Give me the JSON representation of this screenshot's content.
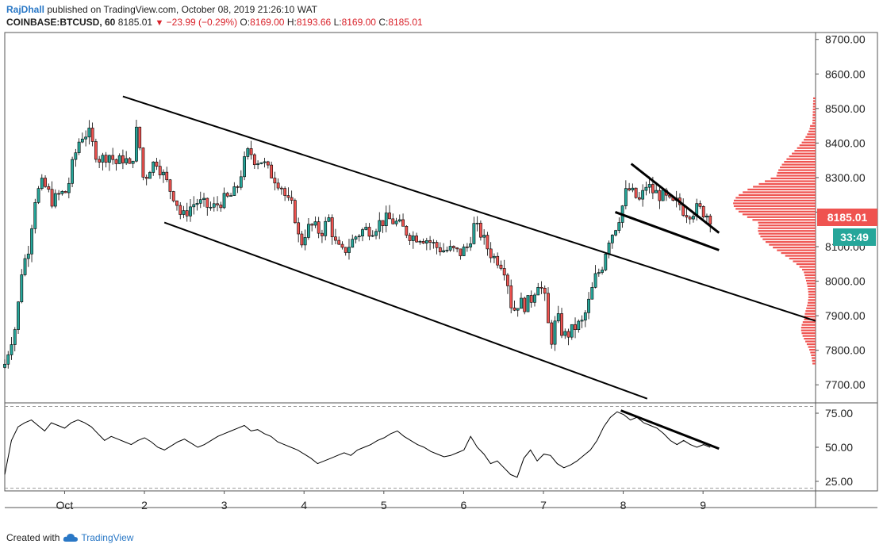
{
  "header": {
    "author": "RajDhall",
    "published": "published on TradingView.com, October 08, 2019 21:26:10 WAT",
    "symbol": "COINBASE:BTCUSD, 60",
    "last": "8185.01",
    "change": "−23.99 (−0.29%)",
    "o_label": "O:",
    "o_value": "8169.00",
    "h_label": "H:",
    "h_value": "8193.66",
    "l_label": "L:",
    "l_value": "8169.00",
    "c_label": "C:",
    "c_value": "8185.01"
  },
  "footer": {
    "created_with": "Created with",
    "brand": "TradingView"
  },
  "colors": {
    "up": "#26a69a",
    "down": "#ef5350",
    "candle_edge": "#000000",
    "volume_profile": "#ef5350",
    "price_tag": "#ef5350",
    "timer_tag": "#26a69a"
  },
  "chart_data": [
    {
      "type": "candlestick",
      "title": "",
      "symbol": "COINBASE:BTCUSD",
      "interval": "60",
      "y_axis": {
        "ylim": [
          7650,
          8720
        ],
        "ticks": [
          "7700.00",
          "7800.00",
          "7900.00",
          "8000.00",
          "8100.00",
          "8200.00",
          "8300.00",
          "8400.00",
          "8500.00",
          "8600.00",
          "8700.00"
        ]
      },
      "x_axis": {
        "xlim": [
          0,
          10.16
        ],
        "ticks": [
          {
            "x": 0.75,
            "label": "Oct"
          },
          {
            "x": 1.75,
            "label": "2"
          },
          {
            "x": 2.75,
            "label": "3"
          },
          {
            "x": 3.75,
            "label": "4"
          },
          {
            "x": 4.75,
            "label": "5"
          },
          {
            "x": 5.75,
            "label": "6"
          },
          {
            "x": 6.75,
            "label": "7"
          },
          {
            "x": 7.75,
            "label": "8"
          },
          {
            "x": 8.75,
            "label": "9"
          }
        ]
      },
      "last_price": "8185.01",
      "countdown": "33:49",
      "close_path": [
        [
          0.0,
          7760
        ],
        [
          0.08,
          7830
        ],
        [
          0.15,
          7880
        ],
        [
          0.2,
          8020
        ],
        [
          0.3,
          8100
        ],
        [
          0.38,
          8240
        ],
        [
          0.46,
          8280
        ],
        [
          0.52,
          8270
        ],
        [
          0.6,
          8230
        ],
        [
          0.68,
          8250
        ],
        [
          0.78,
          8260
        ],
        [
          0.86,
          8350
        ],
        [
          0.95,
          8420
        ],
        [
          1.05,
          8430
        ],
        [
          1.12,
          8380
        ],
        [
          1.2,
          8350
        ],
        [
          1.3,
          8370
        ],
        [
          1.4,
          8340
        ],
        [
          1.5,
          8360
        ],
        [
          1.58,
          8320
        ],
        [
          1.66,
          8450
        ],
        [
          1.74,
          8290
        ],
        [
          1.82,
          8330
        ],
        [
          1.9,
          8350
        ],
        [
          1.98,
          8310
        ],
        [
          2.06,
          8270
        ],
        [
          2.14,
          8240
        ],
        [
          2.22,
          8180
        ],
        [
          2.3,
          8210
        ],
        [
          2.4,
          8230
        ],
        [
          2.5,
          8220
        ],
        [
          2.6,
          8210
        ],
        [
          2.7,
          8230
        ],
        [
          2.8,
          8240
        ],
        [
          2.9,
          8260
        ],
        [
          2.98,
          8330
        ],
        [
          3.06,
          8380
        ],
        [
          3.14,
          8350
        ],
        [
          3.22,
          8350
        ],
        [
          3.3,
          8320
        ],
        [
          3.38,
          8300
        ],
        [
          3.46,
          8280
        ],
        [
          3.54,
          8230
        ],
        [
          3.62,
          8210
        ],
        [
          3.7,
          8100
        ],
        [
          3.78,
          8150
        ],
        [
          3.86,
          8160
        ],
        [
          3.96,
          8140
        ],
        [
          4.06,
          8180
        ],
        [
          4.14,
          8110
        ],
        [
          4.22,
          8080
        ],
        [
          4.3,
          8100
        ],
        [
          4.4,
          8130
        ],
        [
          4.5,
          8150
        ],
        [
          4.6,
          8150
        ],
        [
          4.7,
          8170
        ],
        [
          4.8,
          8180
        ],
        [
          4.9,
          8170
        ],
        [
          5.0,
          8150
        ],
        [
          5.1,
          8130
        ],
        [
          5.2,
          8130
        ],
        [
          5.3,
          8120
        ],
        [
          5.4,
          8100
        ],
        [
          5.5,
          8090
        ],
        [
          5.6,
          8090
        ],
        [
          5.7,
          8080
        ],
        [
          5.8,
          8100
        ],
        [
          5.88,
          8160
        ],
        [
          5.96,
          8140
        ],
        [
          6.04,
          8100
        ],
        [
          6.12,
          8070
        ],
        [
          6.2,
          8060
        ],
        [
          6.28,
          8030
        ],
        [
          6.36,
          7910
        ],
        [
          6.44,
          7940
        ],
        [
          6.52,
          7930
        ],
        [
          6.6,
          7950
        ],
        [
          6.68,
          8000
        ],
        [
          6.76,
          7960
        ],
        [
          6.84,
          7820
        ],
        [
          6.92,
          7900
        ],
        [
          7.0,
          7840
        ],
        [
          7.08,
          7850
        ],
        [
          7.16,
          7870
        ],
        [
          7.24,
          7880
        ],
        [
          7.32,
          7940
        ],
        [
          7.4,
          8010
        ],
        [
          7.48,
          8040
        ],
        [
          7.56,
          8120
        ],
        [
          7.64,
          8150
        ],
        [
          7.72,
          8200
        ],
        [
          7.8,
          8270
        ],
        [
          7.88,
          8250
        ],
        [
          7.96,
          8230
        ],
        [
          8.04,
          8280
        ],
        [
          8.12,
          8260
        ],
        [
          8.2,
          8250
        ],
        [
          8.28,
          8240
        ],
        [
          8.36,
          8220
        ],
        [
          8.44,
          8230
        ],
        [
          8.52,
          8200
        ],
        [
          8.6,
          8200
        ],
        [
          8.68,
          8210
        ],
        [
          8.76,
          8200
        ],
        [
          8.84,
          8185
        ]
      ],
      "trendlines": [
        {
          "name": "channel-upper",
          "x1": 1.48,
          "y1": 8535,
          "x2": 10.16,
          "y2": 7885
        },
        {
          "name": "channel-lower",
          "x1": 2.0,
          "y1": 8170,
          "x2": 8.05,
          "y2": 7660
        },
        {
          "name": "wedge-upper",
          "x1": 7.85,
          "y1": 8340,
          "x2": 8.95,
          "y2": 8140
        },
        {
          "name": "wedge-lower",
          "x1": 7.65,
          "y1": 8200,
          "x2": 8.95,
          "y2": 8090
        }
      ],
      "volume_profile_range": [
        7760,
        8530
      ]
    },
    {
      "type": "line",
      "title": "",
      "y_axis": {
        "ylim": [
          18,
          82
        ],
        "ticks": [
          "25.00",
          "50.00",
          "75.00"
        ],
        "band": [
          20,
          80
        ]
      },
      "series": [
        {
          "values": [
            30,
            55,
            65,
            68,
            70,
            66,
            62,
            68,
            66,
            64,
            68,
            70,
            68,
            65,
            60,
            55,
            58,
            56,
            54,
            52,
            55,
            57,
            54,
            50,
            48,
            51,
            54,
            56,
            53,
            50,
            52,
            55,
            58,
            60,
            62,
            64,
            66,
            62,
            63,
            60,
            58,
            54,
            52,
            50,
            48,
            45,
            42,
            38,
            40,
            42,
            44,
            46,
            44,
            48,
            50,
            52,
            55,
            57,
            60,
            62,
            58,
            55,
            52,
            50,
            47,
            45,
            43,
            44,
            46,
            48,
            58,
            50,
            45,
            38,
            40,
            35,
            30,
            28,
            42,
            48,
            40,
            45,
            44,
            38,
            35,
            37,
            40,
            44,
            48,
            55,
            65,
            72,
            76,
            74,
            70,
            72,
            68,
            66,
            64,
            60,
            55,
            52,
            55,
            52,
            50,
            52,
            50
          ]
        }
      ],
      "trendlines": [
        {
          "name": "rsi-divergence",
          "x1": 7.72,
          "y1": 77,
          "x2": 8.95,
          "y2": 49
        }
      ]
    }
  ]
}
